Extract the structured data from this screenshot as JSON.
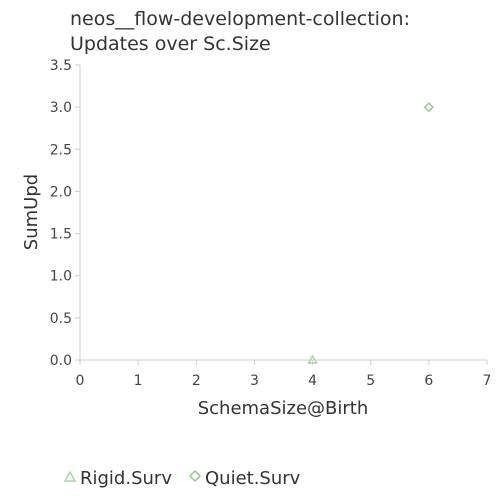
{
  "chart_data": {
    "type": "scatter",
    "title_lines": [
      "neos__flow-development-collection:",
      "Updates over Sc.Size"
    ],
    "xlabel": "SchemaSize@Birth",
    "ylabel": "SumUpd",
    "xlim": [
      0,
      7
    ],
    "ylim": [
      0,
      3.5
    ],
    "x_ticks": [
      "0",
      "1",
      "2",
      "3",
      "4",
      "5",
      "6",
      "7"
    ],
    "y_ticks": [
      "0.0",
      "0.5",
      "1.0",
      "1.5",
      "2.0",
      "2.5",
      "3.0",
      "3.5"
    ],
    "grid": false,
    "legend_position": "bottom",
    "series": [
      {
        "name": "Rigid.Surv",
        "marker": "triangle",
        "color": "#a8d8a0",
        "points": [
          {
            "x": 4,
            "y": 0
          }
        ]
      },
      {
        "name": "Quiet.Surv",
        "marker": "diamond",
        "color": "#8ccf7e",
        "points": [
          {
            "x": 6,
            "y": 3
          }
        ]
      }
    ]
  }
}
